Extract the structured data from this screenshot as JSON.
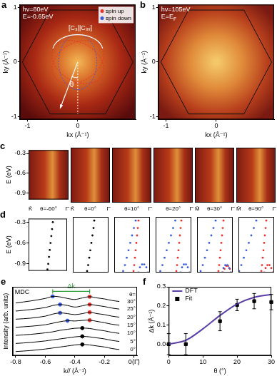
{
  "chart_data": [
    {
      "panel": "a",
      "type": "map",
      "annotations": [
        {
          "text": "hν=80eV"
        },
        {
          "text": "E=-0.65eV"
        }
      ],
      "symmetry_label": "[C₃||C₃ᵥ]",
      "angle_label": "θ",
      "legend": [
        {
          "name": "spin up",
          "color": "#e8322a"
        },
        {
          "name": "spin down",
          "color": "#3a5bd9"
        }
      ],
      "x_label": "kx (Å⁻¹)",
      "y_label": "ky (Å⁻¹)",
      "xlim": [
        -1.15,
        1.15
      ],
      "ylim": [
        -1.05,
        1.05
      ],
      "xticks": [
        -1,
        0
      ],
      "yticks": [
        -1,
        0,
        1
      ],
      "zone": {
        "x": [
          1.1,
          0.55,
          -0.55,
          -1.1,
          -0.55,
          0.55,
          1.1
        ],
        "y": [
          0,
          0.95,
          0.95,
          0,
          -0.95,
          -0.95,
          0
        ]
      }
    },
    {
      "panel": "b",
      "type": "map",
      "annotations": [
        {
          "text": "hν=105eV"
        },
        {
          "text": "E=E",
          "sub": "F"
        }
      ],
      "x_label": "kx (Å⁻¹)",
      "y_label": "ky (Å⁻¹)",
      "xlim": [
        -1.15,
        1.15
      ],
      "ylim": [
        -1.05,
        1.05
      ],
      "xticks": [
        -1,
        0
      ],
      "yticks": [
        -1,
        0,
        1
      ],
      "zone": {
        "x": [
          1.1,
          0.55,
          -0.55,
          -1.1,
          -0.55,
          0.55,
          1.1
        ],
        "y": [
          0,
          0.95,
          0.95,
          0,
          -0.95,
          -0.95,
          0
        ]
      }
    },
    {
      "panel": "c",
      "type": "image",
      "y_label": "E (eV)",
      "ylim": [
        -1.0,
        -0.25
      ],
      "yticks": [
        -0.3,
        -0.6,
        -0.9
      ],
      "tick_labels": "y",
      "panels": [
        {
          "left": "K̄",
          "theta": "θ=-60°",
          "right": "Γ̄"
        },
        {
          "left": "K̄",
          "theta": "θ=0°",
          "right": "Γ̄"
        },
        {
          "theta": "θ=10°",
          "right": "Γ̄"
        },
        {
          "theta": "θ=20°",
          "right": "Γ̄"
        },
        {
          "left": "M̄",
          "theta": "θ=30°",
          "right": "Γ̄"
        },
        {
          "left": "M̄",
          "theta": "θ=90°",
          "right": "Γ̄"
        }
      ]
    },
    {
      "panel": "d",
      "type": "scatter",
      "y_label": "E (eV)",
      "xlim": [
        0,
        1
      ],
      "ylim": [
        -1.0,
        -0.25
      ],
      "yticks": [
        -0.3,
        -0.6,
        -0.9
      ],
      "tick_labels": "y",
      "panels": [
        {
          "series": [
            {
              "color": "#000000",
              "x": [
                0.63,
                0.61,
                0.59,
                0.57,
                0.55,
                0.53,
                0.51,
                0.49
              ],
              "y": [
                -0.3,
                -0.4,
                -0.5,
                -0.6,
                -0.7,
                -0.8,
                -0.9,
                -0.98
              ]
            }
          ]
        },
        {
          "series": [
            {
              "color": "#000000",
              "x": [
                0.6,
                0.58,
                0.55,
                0.52,
                0.49,
                0.46,
                0.43,
                0.4
              ],
              "y": [
                -0.3,
                -0.4,
                -0.5,
                -0.6,
                -0.7,
                -0.8,
                -0.9,
                -0.98
              ]
            }
          ]
        },
        {
          "series": [
            {
              "color": "#e8322a",
              "x": [
                0.68,
                0.66,
                0.64,
                0.62,
                0.6,
                0.58,
                0.56,
                0.54
              ],
              "y": [
                -0.3,
                -0.4,
                -0.5,
                -0.6,
                -0.7,
                -0.8,
                -0.9,
                -0.98
              ]
            },
            {
              "color": "#3a5bd9",
              "x": [
                0.6,
                0.55,
                0.5,
                0.45,
                0.4,
                0.35,
                0.3,
                0.25
              ],
              "y": [
                -0.3,
                -0.4,
                -0.5,
                -0.6,
                -0.7,
                -0.8,
                -0.9,
                -0.98
              ]
            },
            {
              "color": "#3a5bd9",
              "x": [
                0.68,
                0.72,
                0.78,
                0.84,
                0.9,
                0.95
              ],
              "y": [
                -1.0,
                -0.93,
                -0.89,
                -0.89,
                -0.93,
                -1.0
              ]
            }
          ]
        },
        {
          "series": [
            {
              "color": "#e8322a",
              "x": [
                0.72,
                0.7,
                0.68,
                0.66,
                0.64,
                0.62,
                0.6,
                0.58
              ],
              "y": [
                -0.3,
                -0.4,
                -0.5,
                -0.6,
                -0.7,
                -0.8,
                -0.9,
                -0.98
              ]
            },
            {
              "color": "#3a5bd9",
              "x": [
                0.55,
                0.49,
                0.43,
                0.37,
                0.31,
                0.25,
                0.19,
                0.13
              ],
              "y": [
                -0.3,
                -0.4,
                -0.5,
                -0.6,
                -0.7,
                -0.8,
                -0.9,
                -0.98
              ]
            },
            {
              "color": "#3a5bd9",
              "x": [
                0.7,
                0.74,
                0.79,
                0.85,
                0.9,
                0.95
              ],
              "y": [
                -1.0,
                -0.93,
                -0.89,
                -0.89,
                -0.93,
                -1.0
              ]
            }
          ]
        },
        {
          "series": [
            {
              "color": "#e8322a",
              "x": [
                0.74,
                0.72,
                0.7,
                0.68,
                0.66,
                0.64,
                0.62,
                0.6
              ],
              "y": [
                -0.3,
                -0.4,
                -0.5,
                -0.6,
                -0.7,
                -0.8,
                -0.9,
                -0.98
              ]
            },
            {
              "color": "#3a5bd9",
              "x": [
                0.52,
                0.46,
                0.4,
                0.34,
                0.28,
                0.22,
                0.16,
                0.1
              ],
              "y": [
                -0.3,
                -0.4,
                -0.5,
                -0.6,
                -0.7,
                -0.8,
                -0.9,
                -0.98
              ]
            },
            {
              "color": "#3a5bd9",
              "x": [
                0.7,
                0.74,
                0.79,
                0.85,
                0.9,
                0.94
              ],
              "y": [
                -1.0,
                -0.94,
                -0.9,
                -0.9,
                -0.94,
                -1.0
              ]
            },
            {
              "color": "#e8322a",
              "x": [
                0.73,
                0.77,
                0.82,
                0.87,
                0.92,
                0.96
              ],
              "y": [
                -1.0,
                -0.95,
                -0.91,
                -0.91,
                -0.95,
                -1.0
              ]
            }
          ]
        },
        {
          "series": [
            {
              "color": "#e8322a",
              "x": [
                0.78,
                0.76,
                0.74,
                0.72,
                0.7,
                0.68,
                0.66,
                0.64
              ],
              "y": [
                -0.3,
                -0.4,
                -0.5,
                -0.6,
                -0.7,
                -0.8,
                -0.9,
                -0.98
              ]
            },
            {
              "color": "#3a5bd9",
              "x": [
                0.5,
                0.43,
                0.36,
                0.29,
                0.22,
                0.15,
                0.08,
                0.02
              ],
              "y": [
                -0.3,
                -0.4,
                -0.5,
                -0.6,
                -0.7,
                -0.8,
                -0.9,
                -0.98
              ]
            },
            {
              "color": "#e8322a",
              "x": [
                0.72,
                0.76,
                0.81,
                0.87,
                0.92,
                0.96
              ],
              "y": [
                -1.0,
                -0.94,
                -0.9,
                -0.9,
                -0.94,
                -1.0
              ]
            }
          ]
        }
      ]
    },
    {
      "panel": "e",
      "type": "line",
      "title": "MDC",
      "x_label": "k// (Å⁻¹)",
      "y_label": "Intensity (arb. units)",
      "tick_labels": "x",
      "xlim": [
        -0.82,
        0.02
      ],
      "ylim": [
        0,
        6.8
      ],
      "xticks": [
        -0.8,
        -0.6,
        -0.4,
        -0.2,
        {
          "value": 0,
          "label": "0(Γ̄)"
        }
      ],
      "theta_header": "θ=",
      "x": [
        -0.8,
        -0.7,
        -0.6,
        -0.55,
        -0.5,
        -0.45,
        -0.4,
        -0.35,
        -0.3,
        -0.25,
        -0.2,
        -0.15,
        -0.1
      ],
      "series": [
        {
          "name": "0°",
          "color": "#000000",
          "values": [
            0.4,
            0.5,
            0.65,
            0.75,
            0.85,
            0.95,
            1.05,
            1.1,
            1.05,
            0.95,
            0.85,
            0.7,
            0.6
          ],
          "peaks": [
            {
              "x": -0.35,
              "y": 1.1,
              "color": "#000000"
            }
          ]
        },
        {
          "name": "5°",
          "color": "#000000",
          "values": [
            1.2,
            1.3,
            1.45,
            1.55,
            1.65,
            1.75,
            1.85,
            1.9,
            1.85,
            1.75,
            1.65,
            1.5,
            1.4
          ],
          "peaks": [
            {
              "x": -0.35,
              "y": 1.9,
              "color": "#000000"
            }
          ]
        },
        {
          "name": "10°",
          "color": "#000000",
          "values": [
            2.0,
            2.1,
            2.25,
            2.35,
            2.5,
            2.6,
            2.7,
            2.72,
            2.68,
            2.55,
            2.45,
            2.3,
            2.2
          ],
          "peaks": [
            {
              "x": -0.35,
              "y": 2.72,
              "color": "#000000"
            }
          ]
        },
        {
          "name": "15°",
          "color": "#000000",
          "values": [
            2.8,
            2.9,
            3.05,
            3.2,
            3.35,
            3.45,
            3.42,
            3.48,
            3.5,
            3.38,
            3.25,
            3.1,
            3.0
          ],
          "peaks": [
            {
              "x": -0.45,
              "y": 3.45,
              "color": "#3a5bd9"
            },
            {
              "x": -0.3,
              "y": 3.5,
              "color": "#e8322a"
            }
          ]
        },
        {
          "name": "20°",
          "color": "#000000",
          "values": [
            3.6,
            3.7,
            3.9,
            4.1,
            4.22,
            4.15,
            4.05,
            4.15,
            4.28,
            4.15,
            4.05,
            3.9,
            3.8
          ],
          "peaks": [
            {
              "x": -0.5,
              "y": 4.22,
              "color": "#3a5bd9"
            },
            {
              "x": -0.3,
              "y": 4.28,
              "color": "#e8322a"
            }
          ]
        },
        {
          "name": "25°",
          "color": "#000000",
          "values": [
            4.4,
            4.55,
            4.75,
            4.95,
            5.05,
            4.95,
            4.8,
            4.92,
            5.05,
            4.95,
            4.85,
            4.7,
            4.6
          ],
          "peaks": [
            {
              "x": -0.5,
              "y": 5.05,
              "color": "#3a5bd9"
            },
            {
              "x": -0.3,
              "y": 5.05,
              "color": "#e8322a"
            }
          ]
        },
        {
          "name": "30°",
          "color": "#000000",
          "values": [
            5.2,
            5.4,
            5.65,
            5.85,
            5.8,
            5.65,
            5.55,
            5.7,
            5.82,
            5.7,
            5.6,
            5.45,
            5.35
          ],
          "peaks": [
            {
              "x": -0.55,
              "y": 5.85,
              "color": "#3a5bd9"
            },
            {
              "x": -0.3,
              "y": 5.82,
              "color": "#e8322a"
            }
          ]
        }
      ],
      "delta_k": {
        "label": "Δk",
        "from": -0.55,
        "to": -0.3,
        "color": "#2e9e3a"
      }
    },
    {
      "panel": "f",
      "type": "line",
      "x_label": "θ (°)",
      "y_label": "Δk (Å⁻¹)",
      "xlim": [
        0,
        30
      ],
      "ylim": [
        -0.06,
        0.3
      ],
      "xticks": [
        0,
        10,
        20,
        30
      ],
      "yticks": [
        {
          "value": 0,
          "label": "0.0"
        },
        0.1,
        0.2,
        0.3
      ],
      "legend": "upper left",
      "series": [
        {
          "name": "DFT",
          "type": "line",
          "color": "#5a3fa8",
          "x": [
            0,
            5,
            10,
            15,
            20,
            25,
            30
          ],
          "values": [
            0,
            0.02,
            0.08,
            0.15,
            0.21,
            0.245,
            0.26
          ]
        },
        {
          "name": "Fit",
          "type": "scatter",
          "marker": "square",
          "color": "#000000",
          "x": [
            0,
            5,
            15,
            20,
            25,
            30
          ],
          "values": [
            0,
            0,
            0.12,
            0.205,
            0.225,
            0.22
          ],
          "errors": [
            0.055,
            0.055,
            0.05,
            0.03,
            0.04,
            0.04
          ]
        }
      ]
    }
  ]
}
